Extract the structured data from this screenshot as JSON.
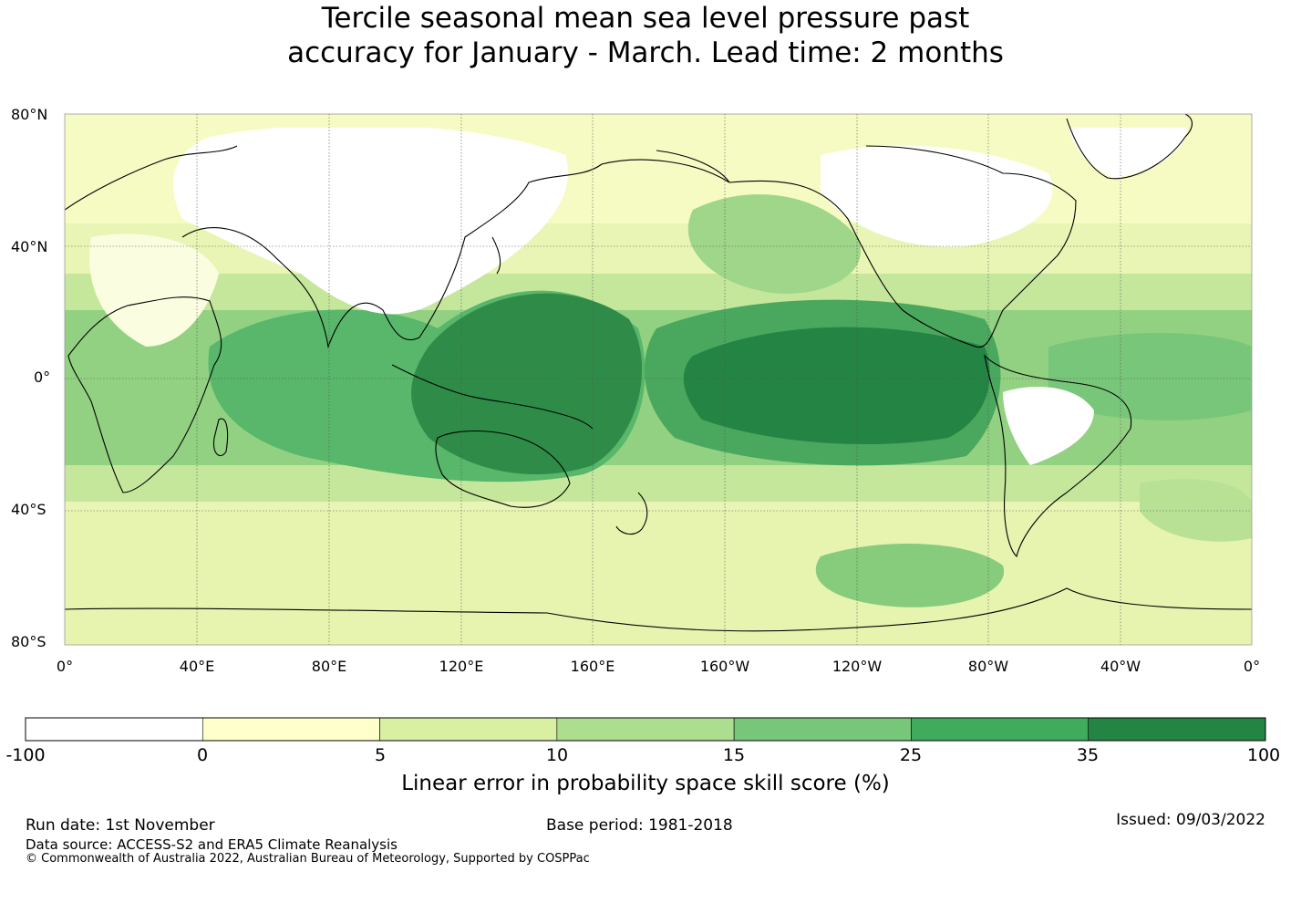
{
  "title": {
    "line1": "Tercile seasonal mean sea level pressure past",
    "line2": "accuracy for January - March. Lead time: 2 months"
  },
  "map": {
    "lat_labels": [
      "80°N",
      "40°N",
      "0°",
      "40°S",
      "80°S"
    ],
    "lon_labels": [
      "0°",
      "40°E",
      "80°E",
      "120°E",
      "160°E",
      "160°W",
      "120°W",
      "80°W",
      "40°W",
      "0°"
    ],
    "gridlines": true,
    "projection": "equirectangular",
    "lon_range": [
      0,
      360
    ],
    "lat_range": [
      -80,
      80
    ]
  },
  "colorbar": {
    "ticks": [
      "-100",
      "0",
      "5",
      "10",
      "15",
      "25",
      "35",
      "100"
    ],
    "colors": [
      "#ffffff",
      "#ffffcc",
      "#d9f0a3",
      "#addd8e",
      "#78c679",
      "#41ab5d",
      "#238443"
    ],
    "label": "Linear error in probability space skill score (%)"
  },
  "footer": {
    "run_date": "Run date: 1st November",
    "base_period": "Base period: 1981-2018",
    "issued": "Issued: 09/03/2022",
    "data_source": "Data source: ACCESS-S2 and ERA5 Climate Reanalysis",
    "copyright": "© Commonwealth of Australia 2022, Australian Bureau of Meteorology, Supported by COSPPac"
  }
}
